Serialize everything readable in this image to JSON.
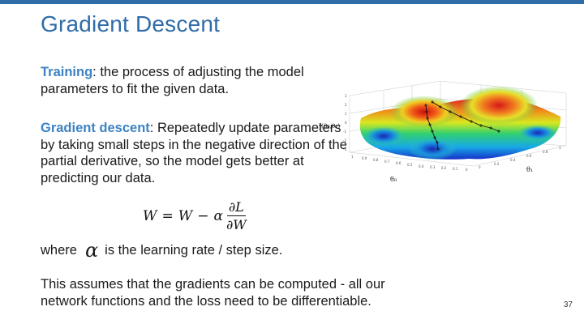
{
  "slide": {
    "title": "Gradient Descent",
    "page_number": "37",
    "accent_color": "#2f6ca8",
    "term_color": "#3c82c4"
  },
  "training": {
    "term": "Training",
    "text": ": the process of adjusting the model parameters to fit the given data."
  },
  "gradient_descent": {
    "term": "Gradient descent",
    "text": ": Repeatedly update parameters by taking small steps in the negative direction of the partial derivative, so the model gets better at predicting our data."
  },
  "equation": {
    "lhs": "W",
    "equals": "=",
    "w": "W",
    "minus": "−",
    "alpha": "α",
    "numerator": "∂L",
    "denominator": "∂W"
  },
  "where_line": {
    "prefix": "where",
    "symbol": "α",
    "suffix": "is the learning rate / step size."
  },
  "assumption": {
    "line1": "This assumes that the gradients can be computed - all our",
    "line2": "network functions and the loss need to be differentiable."
  },
  "figure": {
    "z_label": "J(θ₀,θ₁)",
    "x_label": "θ₀",
    "y_label": "θ₁",
    "z_ticks": [
      "3",
      "2",
      "1",
      "0",
      "-1",
      "-2",
      "-3"
    ],
    "x_ticks": [
      "1",
      "0.9",
      "0.8",
      "0.7",
      "0.6",
      "0.5",
      "0.4",
      "0.3",
      "0.2",
      "0.1",
      "0"
    ],
    "y_ticks": [
      "0",
      "0.2",
      "0.4",
      "0.6",
      "0.8",
      "1"
    ]
  }
}
